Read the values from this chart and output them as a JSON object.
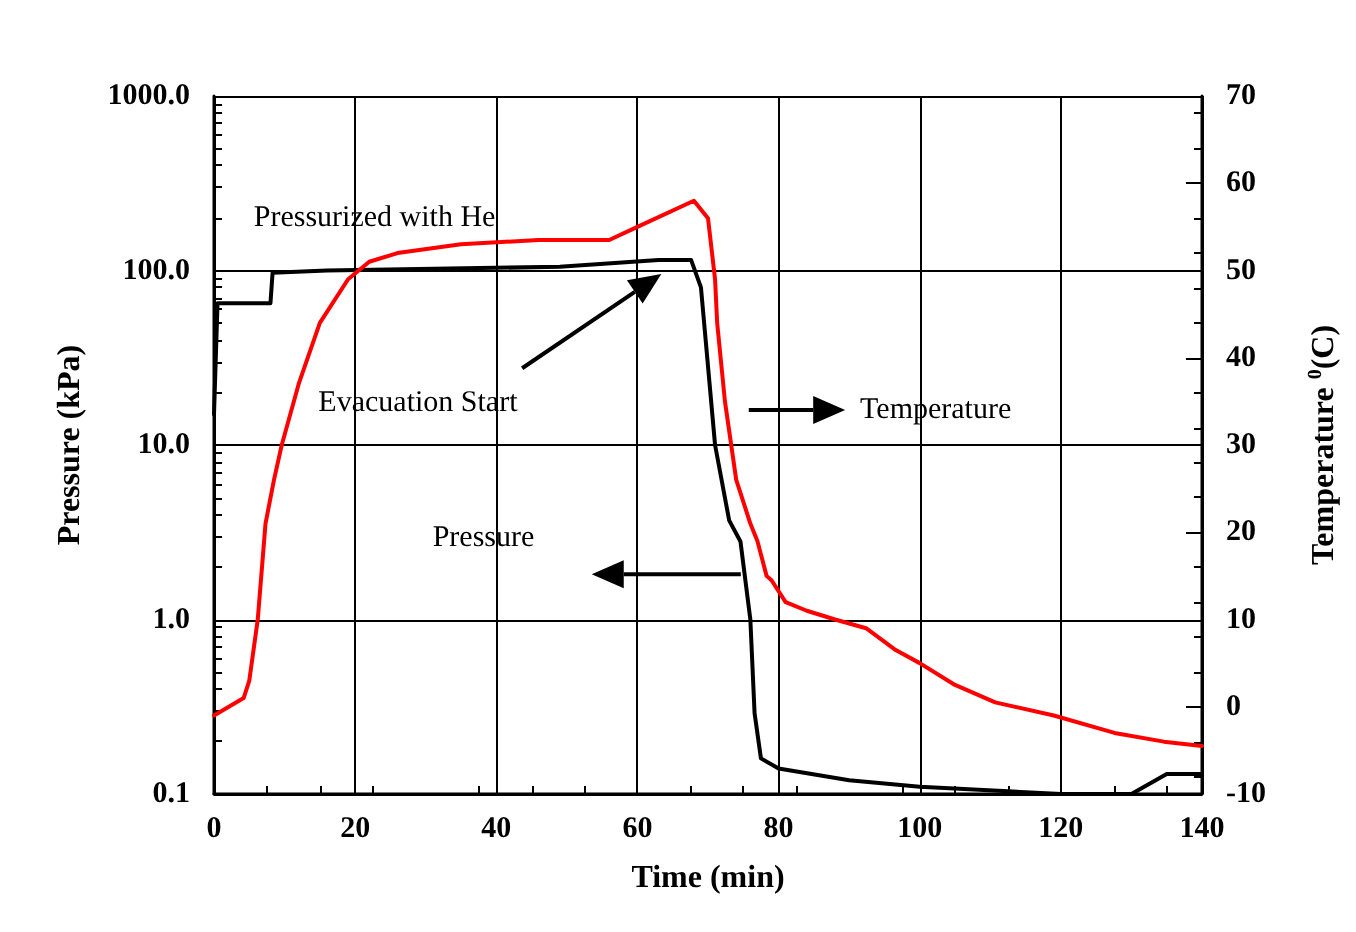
{
  "chart_data": {
    "type": "line",
    "xlabel": "Time (min)",
    "ylabel": "Pressure (kPa)",
    "y2label": "Temperature $^{0}$(C)",
    "series": [
      {
        "color": "#000000",
        "x": [
          0,
          0.5,
          8,
          8.3,
          16,
          49,
          63,
          67.6,
          69,
          71,
          73,
          74.6,
          76,
          76.6,
          77.5,
          80,
          90,
          100,
          120,
          130,
          135,
          140
        ],
        "values": [
          15,
          65,
          65,
          97,
          100,
          105,
          115,
          115,
          80,
          10,
          3.7,
          2.8,
          1.0,
          0.29,
          0.16,
          0.14,
          0.12,
          0.11,
          0.1,
          0.1,
          0.13,
          0.13
        ]
      },
      {
        "color": "#ff0000",
        "axis": "y2",
        "x": [
          0,
          4.2,
          5,
          6.2,
          7.3,
          8.5,
          9.6,
          12,
          15,
          19,
          22,
          26,
          35,
          46,
          56,
          60,
          68,
          70,
          71,
          71.3,
          72.4,
          74,
          76,
          77,
          78.3,
          79,
          81,
          84,
          88,
          92.4,
          96.6,
          100,
          105,
          110.7,
          119,
          127.6,
          134.6,
          140
        ],
        "values": [
          -1,
          1,
          3,
          10,
          21,
          26,
          30,
          37,
          44,
          49,
          51,
          52,
          53,
          53.5,
          53.5,
          55,
          58,
          56,
          49,
          44,
          35,
          26,
          21,
          19,
          15,
          14.5,
          12,
          11,
          10,
          9,
          6.5,
          5,
          2.5,
          0.5,
          -1,
          -3,
          -4,
          -4.5
        ]
      }
    ],
    "annotations": [
      "Pressurized with He",
      "Evacuation Start",
      "Temperature",
      "Pressure"
    ],
    "xlim": [
      0,
      140
    ],
    "xticks": [
      0,
      20,
      40,
      60,
      80,
      100,
      120,
      140
    ],
    "ylim": [
      0.1,
      1000
    ],
    "yticks": [
      {
        "value": 0.1,
        "label": "0.1"
      },
      {
        "value": 1,
        "label": "1.0"
      },
      {
        "value": 10,
        "label": "10.0"
      },
      {
        "value": 100,
        "label": "100.0"
      },
      {
        "value": 1000,
        "label": "1000.0"
      }
    ],
    "y2lim": [
      -10,
      70
    ],
    "y2ticks": [
      -10,
      0,
      10,
      20,
      30,
      40,
      50,
      60,
      70
    ],
    "log": "y",
    "grid": true,
    "legend": false,
    "marker": "none",
    "line_style": "solid"
  }
}
